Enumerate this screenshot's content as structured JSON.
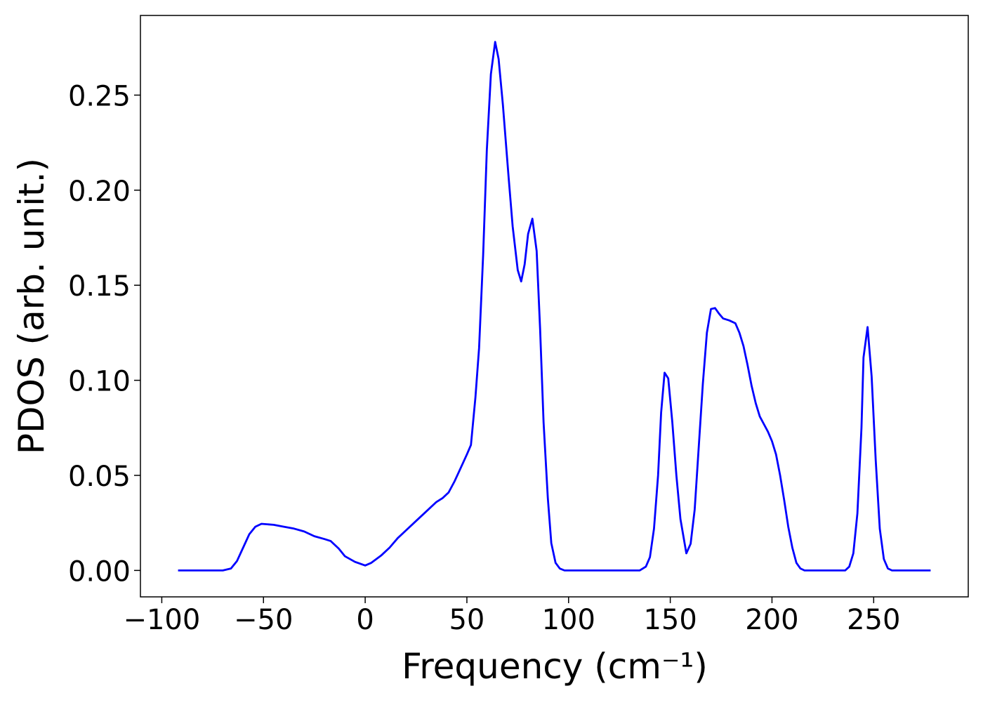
{
  "chart_data": {
    "type": "line",
    "x_label": "Frequency (cm⁻¹)",
    "y_label": "PDOS (arb. unit.)",
    "xlim": [
      -110.5,
      296.5
    ],
    "ylim": [
      -0.0139,
      0.2919
    ],
    "xticks": [
      {
        "value": -100,
        "label": "−100"
      },
      {
        "value": -50,
        "label": "−50"
      },
      0,
      50,
      100,
      150,
      200,
      250
    ],
    "yticks": [
      {
        "value": 0,
        "label": "0.00"
      },
      {
        "value": 0.05,
        "label": "0.05"
      },
      {
        "value": 0.1,
        "label": "0.10"
      },
      {
        "value": 0.15,
        "label": "0.15"
      },
      {
        "value": 0.2,
        "label": "0.20"
      },
      {
        "value": 0.25,
        "label": "0.25"
      }
    ],
    "grid": false,
    "x": [
      -92,
      -70,
      -66,
      -63,
      -60,
      -57,
      -54,
      -51,
      -45,
      -40,
      -35,
      -30,
      -25,
      -20,
      -17,
      -13,
      -10,
      -5,
      0,
      3,
      8,
      12,
      16,
      20,
      25,
      30,
      35,
      38,
      41,
      44,
      47,
      50,
      52,
      54.2,
      56,
      58,
      59.8,
      61.8,
      63.9,
      65.6,
      67.7,
      70.5,
      72.5,
      75,
      76.7,
      78.4,
      80.1,
      82.2,
      84.3,
      86,
      87.7,
      89.8,
      91.5,
      93.6,
      95.7,
      98,
      135,
      138,
      140,
      142,
      144,
      145.5,
      147.2,
      149,
      151,
      153,
      155,
      157.9,
      160,
      162,
      164,
      166,
      168,
      170,
      172,
      174,
      176,
      179,
      182,
      184,
      186,
      188,
      190,
      192,
      194,
      196,
      198,
      200,
      202,
      204,
      206,
      208,
      210,
      212,
      214,
      216,
      236,
      238,
      240,
      242,
      244,
      245,
      247,
      249,
      251,
      253,
      255,
      257,
      259,
      278
    ],
    "series": [
      {
        "name": "PDOS",
        "color": "#0000ff",
        "values": [
          0,
          0,
          0.001,
          0.005,
          0.012,
          0.019,
          0.023,
          0.0245,
          0.024,
          0.023,
          0.022,
          0.0205,
          0.018,
          0.0165,
          0.0155,
          0.0115,
          0.0075,
          0.0045,
          0.0026,
          0.004,
          0.008,
          0.012,
          0.017,
          0.021,
          0.026,
          0.031,
          0.036,
          0.038,
          0.041,
          0.047,
          0.054,
          0.061,
          0.066,
          0.091,
          0.117,
          0.166,
          0.221,
          0.261,
          0.278,
          0.269,
          0.245,
          0.207,
          0.181,
          0.158,
          0.152,
          0.161,
          0.177,
          0.185,
          0.168,
          0.127,
          0.078,
          0.038,
          0.0144,
          0.004,
          0.001,
          0,
          0,
          0.002,
          0.007,
          0.022,
          0.05,
          0.083,
          0.104,
          0.101,
          0.078,
          0.05,
          0.027,
          0.009,
          0.014,
          0.032,
          0.065,
          0.098,
          0.125,
          0.1375,
          0.138,
          0.135,
          0.1325,
          0.1315,
          0.13,
          0.125,
          0.118,
          0.108,
          0.097,
          0.088,
          0.081,
          0.077,
          0.073,
          0.068,
          0.061,
          0.05,
          0.037,
          0.023,
          0.012,
          0.004,
          0.001,
          0,
          0,
          0.002,
          0.009,
          0.03,
          0.075,
          0.112,
          0.128,
          0.102,
          0.058,
          0.022,
          0.006,
          0.001,
          0,
          0
        ]
      }
    ]
  }
}
